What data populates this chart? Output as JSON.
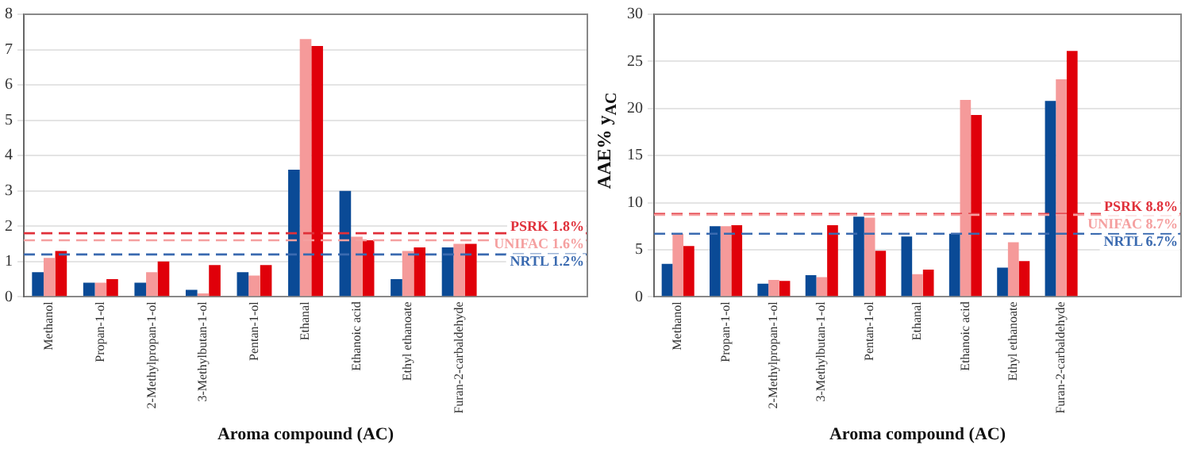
{
  "chart_data": [
    {
      "type": "bar",
      "xlabel": "Aroma compound (AC)",
      "categories": [
        "Methanol",
        "Propan-1-ol",
        "2-Methylpropan-1-ol",
        "3-Methylbutan-1-ol",
        "Pentan-1-ol",
        "Ethanal",
        "Ethanoic acid",
        "Ethyl ethanoate",
        "Furan-2-carbaldehyde"
      ],
      "series": [
        {
          "color": "#0a4a96",
          "values": [
            0.7,
            0.4,
            0.4,
            0.2,
            0.7,
            3.6,
            3.0,
            0.5,
            1.4
          ]
        },
        {
          "color": "#f59a9a",
          "values": [
            1.1,
            0.4,
            0.7,
            0.1,
            0.6,
            7.3,
            1.7,
            1.3,
            1.5
          ]
        },
        {
          "color": "#e0000a",
          "values": [
            1.3,
            0.5,
            1.0,
            0.9,
            0.9,
            7.1,
            1.6,
            1.4,
            1.5
          ]
        }
      ],
      "ylim": [
        0,
        8
      ],
      "yticks": [
        0,
        1,
        2,
        3,
        4,
        5,
        6,
        7,
        8
      ],
      "grid": "y",
      "legend": false,
      "ref_lines": [
        {
          "axis": "y",
          "value": 1.8,
          "label": "PSRK 1.8%",
          "color": "#e0303a",
          "line_style": "dashed"
        },
        {
          "axis": "y",
          "value": 1.6,
          "label": "UNIFAC 1.6%",
          "color": "#f5a0a0",
          "line_style": "dashed"
        },
        {
          "axis": "y",
          "value": 1.2,
          "label": "NRTL 1.2%",
          "color": "#3a6ab0",
          "line_style": "dashed"
        }
      ]
    },
    {
      "type": "bar",
      "xlabel": "Aroma compound (AC)",
      "ylabel": "AAE% y$_{AC}$",
      "categories": [
        "Methanol",
        "Propan-1-ol",
        "2-Methylpropan-1-ol",
        "3-Methylbutan-1-ol",
        "Pentan-1-ol",
        "Ethanal",
        "Ethanoic acid",
        "Ethyl ethanoate",
        "Furan-2-carbaldehyde"
      ],
      "series": [
        {
          "color": "#0a4a96",
          "values": [
            3.5,
            7.5,
            1.4,
            2.3,
            8.5,
            6.4,
            6.7,
            3.1,
            20.8
          ]
        },
        {
          "color": "#f59a9a",
          "values": [
            6.7,
            7.5,
            1.8,
            2.1,
            8.4,
            2.4,
            20.9,
            5.8,
            23.1
          ]
        },
        {
          "color": "#e0000a",
          "values": [
            5.4,
            7.6,
            1.7,
            7.6,
            4.9,
            2.9,
            19.3,
            3.8,
            26.1
          ]
        }
      ],
      "ylim": [
        0,
        30
      ],
      "yticks": [
        0,
        5,
        10,
        15,
        20,
        25,
        30
      ],
      "grid": "y",
      "legend": false,
      "ref_lines": [
        {
          "axis": "y",
          "value": 8.8,
          "label": "PSRK 8.8%",
          "color": "#e0303a",
          "line_style": "dashed"
        },
        {
          "axis": "y",
          "value": 8.7,
          "label": "UNIFAC 8.7%",
          "color": "#f5a0a0",
          "line_style": "dashed"
        },
        {
          "axis": "y",
          "value": 6.7,
          "label": "NRTL 6.7%",
          "color": "#3a6ab0",
          "line_style": "dashed"
        }
      ]
    }
  ]
}
